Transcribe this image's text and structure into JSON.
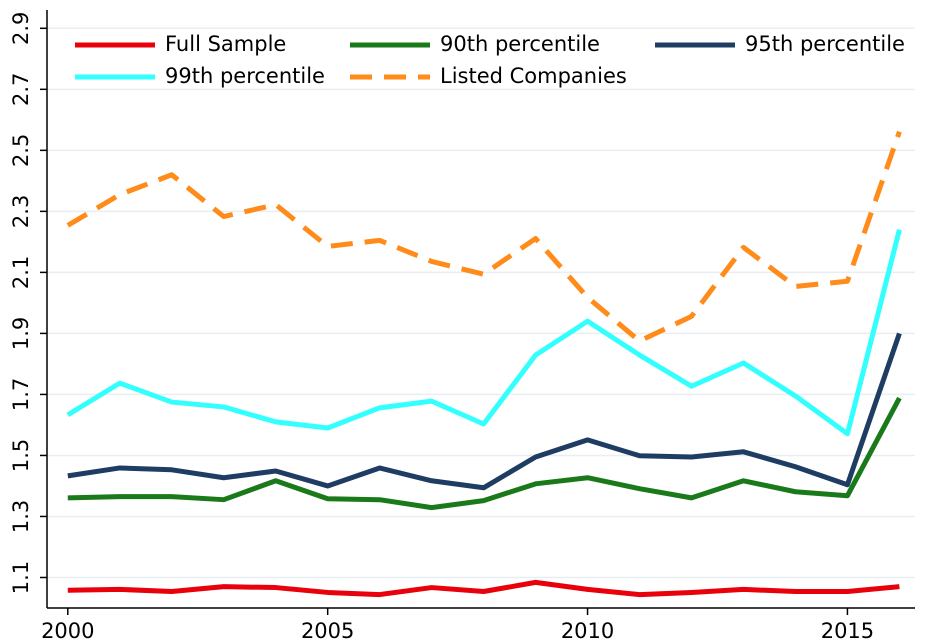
{
  "chart_data": {
    "type": "line",
    "x": [
      2000,
      2001,
      2002,
      2003,
      2004,
      2005,
      2006,
      2007,
      2008,
      2009,
      2010,
      2011,
      2012,
      2013,
      2014,
      2015,
      2016
    ],
    "series": [
      {
        "name": "Full Sample",
        "color": "#e8000b",
        "style": "solid",
        "values": [
          1.058,
          1.061,
          1.054,
          1.07,
          1.067,
          1.051,
          1.044,
          1.067,
          1.054,
          1.084,
          1.061,
          1.044,
          1.051,
          1.061,
          1.054,
          1.054,
          1.07
        ]
      },
      {
        "name": "90th percentile",
        "color": "#1a7a1a",
        "style": "solid",
        "values": [
          1.361,
          1.365,
          1.365,
          1.355,
          1.417,
          1.358,
          1.355,
          1.329,
          1.352,
          1.407,
          1.427,
          1.391,
          1.361,
          1.417,
          1.381,
          1.368,
          1.688
        ]
      },
      {
        "name": "95th percentile",
        "color": "#1f3d63",
        "style": "solid",
        "values": [
          1.433,
          1.459,
          1.453,
          1.427,
          1.449,
          1.4,
          1.459,
          1.417,
          1.394,
          1.495,
          1.551,
          1.499,
          1.495,
          1.512,
          1.463,
          1.404,
          1.9
        ]
      },
      {
        "name": "99th percentile",
        "color": "#33ffff",
        "style": "solid",
        "values": [
          1.633,
          1.737,
          1.675,
          1.659,
          1.61,
          1.59,
          1.656,
          1.678,
          1.603,
          1.829,
          1.94,
          1.829,
          1.727,
          1.803,
          1.695,
          1.571,
          2.24
        ]
      },
      {
        "name": "Listed Companies",
        "color": "#ff8c1a",
        "style": "dashed",
        "values": [
          2.254,
          2.355,
          2.42,
          2.283,
          2.322,
          2.185,
          2.205,
          2.136,
          2.094,
          2.211,
          2.018,
          1.875,
          1.956,
          2.182,
          2.054,
          2.071,
          2.561
        ]
      }
    ],
    "xlim": [
      1999.6,
      2016.3
    ],
    "xticks": [
      2000,
      2005,
      2010,
      2015
    ],
    "ylim": [
      1.0,
      2.96
    ],
    "yticks": [
      1.1,
      1.3,
      1.5,
      1.7,
      1.9,
      2.1,
      2.3,
      2.5,
      2.7,
      2.9
    ],
    "grid": true,
    "legend": "top"
  }
}
